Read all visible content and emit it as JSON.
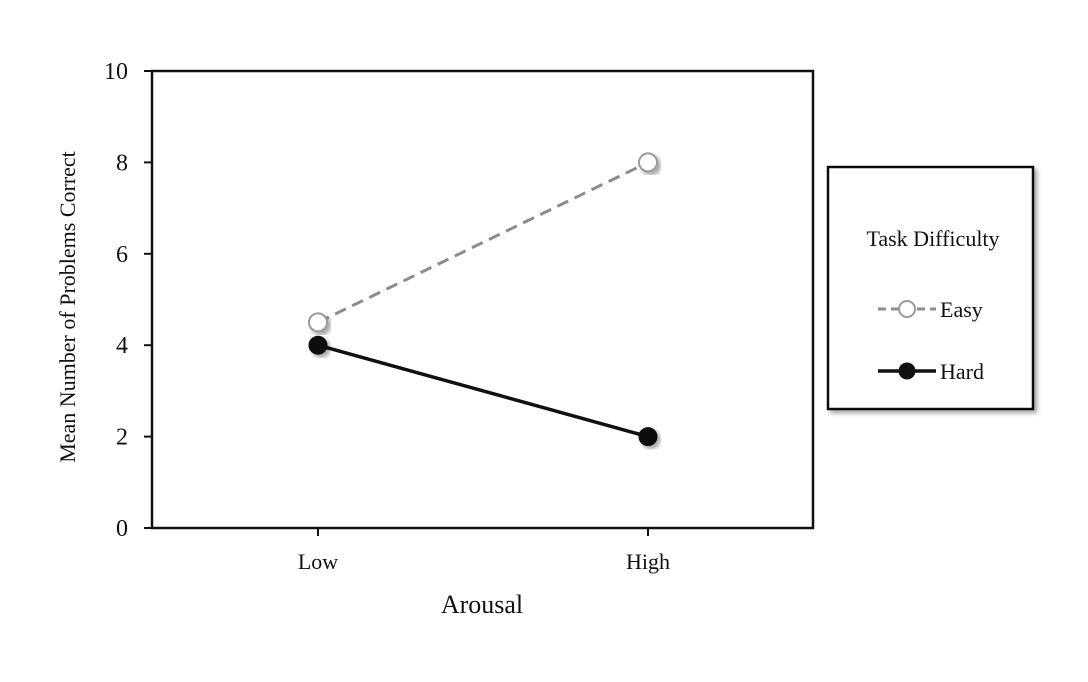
{
  "chart_data": {
    "type": "line",
    "categories": [
      "Low",
      "High"
    ],
    "xlabel": "Arousal",
    "ylabel": "Mean Number of Problems Correct",
    "ylim": [
      0,
      10
    ],
    "yticks": [
      0,
      2,
      4,
      6,
      8,
      10
    ],
    "grid": false,
    "legend": {
      "title": "Task Difficulty",
      "position": "right"
    },
    "series": [
      {
        "name": "Easy",
        "values": [
          4.5,
          8
        ],
        "color": "#8c8c8c",
        "line_style": "dashed",
        "marker": "open-circle"
      },
      {
        "name": "Hard",
        "values": [
          4,
          2
        ],
        "color": "#111111",
        "line_style": "solid",
        "marker": "filled-circle"
      }
    ]
  }
}
